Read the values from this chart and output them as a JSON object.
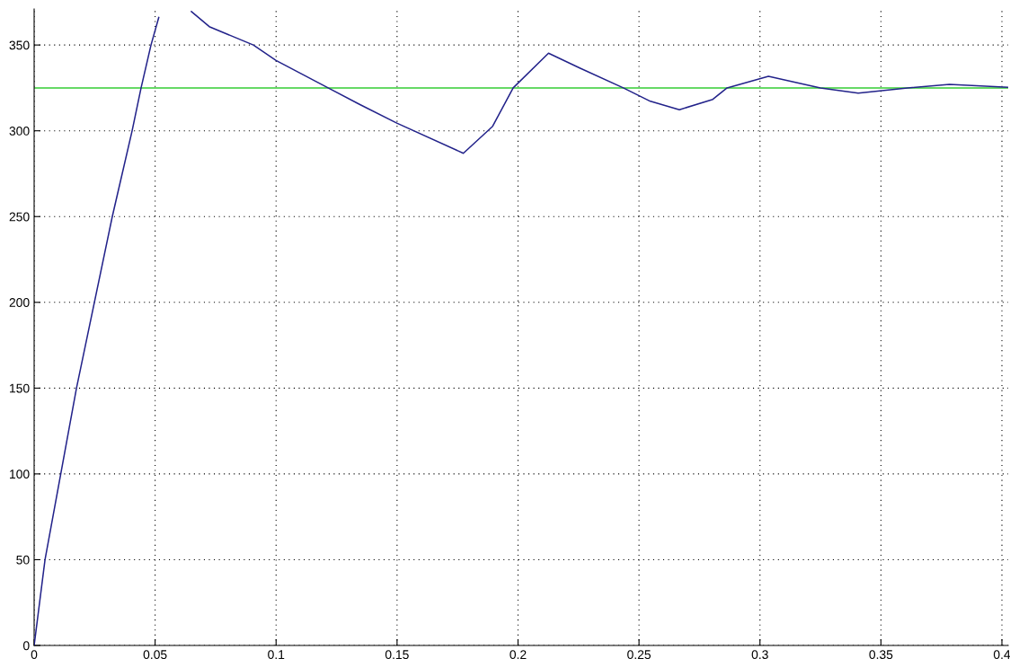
{
  "chart_data": {
    "type": "line",
    "x": [
      0,
      0.0045,
      0.0175,
      0.0323,
      0.0405,
      0.0442,
      0.0483,
      0.0515,
      0.058,
      0.065,
      0.0724,
      0.0906,
      0.1,
      0.1215,
      0.1345,
      0.1499,
      0.1774,
      0.1895,
      0.198,
      0.2126,
      0.2255,
      0.2435,
      0.2547,
      0.2667,
      0.2805,
      0.2864,
      0.3035,
      0.325,
      0.3406,
      0.361,
      0.3783,
      0.4023
    ],
    "series": [
      {
        "color": "#22228a",
        "values": [
          0,
          50,
          150,
          250,
          300,
          325,
          350,
          366,
          null,
          369.5,
          360.7,
          350,
          341,
          325,
          315.4,
          304.5,
          286.9,
          302.6,
          325,
          345.2,
          336.6,
          325,
          317.2,
          312.3,
          318.3,
          325,
          331.7,
          325,
          322,
          325,
          327,
          325.4
        ]
      }
    ],
    "ref_lines": [
      {
        "axis": "y",
        "value": 325,
        "color": "#33cc33",
        "line_style": "solid"
      }
    ],
    "xlim": [
      0,
      0.4026
    ],
    "ylim": [
      0,
      371
    ],
    "xticks": [
      0,
      0.05,
      0.1,
      0.15,
      0.2,
      0.25,
      0.3,
      0.35,
      0.4
    ],
    "yticks": [
      0,
      50,
      100,
      150,
      200,
      250,
      300,
      350
    ],
    "grid": true,
    "line_style": "solid",
    "marker": "none",
    "legend": false
  }
}
